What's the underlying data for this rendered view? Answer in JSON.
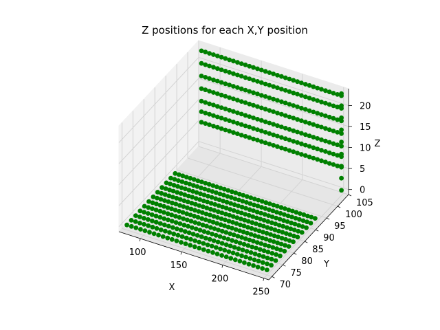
{
  "chart_data": {
    "type": "scatter3d",
    "title": "Z positions for each X,Y position",
    "xlabel": "X",
    "ylabel": "Y",
    "zlabel": "Z",
    "xticks": [
      "100",
      "150",
      "200",
      "250"
    ],
    "yticks": [
      "70",
      "75",
      "80",
      "85",
      "90",
      "95",
      "100",
      "105"
    ],
    "zticks": [
      "0",
      "5",
      "10",
      "15",
      "20"
    ],
    "xlim": [
      74,
      256
    ],
    "ylim": [
      68.6,
      105
    ],
    "zlim": [
      -1.2,
      24
    ],
    "grid": true,
    "marker_color": "#008000",
    "x_range": [
      80,
      250
    ],
    "z_start": 0,
    "z_end": 23,
    "lower_rows": [
      {
        "y": 70,
        "z": 0,
        "n": 32
      },
      {
        "y": 72,
        "z": 0,
        "n": 34
      },
      {
        "y": 74,
        "z": 0,
        "n": 35
      },
      {
        "y": 76,
        "z": 0,
        "n": 36
      },
      {
        "y": 78,
        "z": 0,
        "n": 37
      },
      {
        "y": 80,
        "z": 0,
        "n": 38
      },
      {
        "y": 82,
        "z": 0,
        "n": 38
      },
      {
        "y": 84,
        "z": 0,
        "n": 38
      },
      {
        "y": 86,
        "z": 0,
        "n": 38
      },
      {
        "y": 88,
        "z": 0,
        "n": 38
      },
      {
        "y": 90,
        "z": 0,
        "n": 38
      },
      {
        "y": 92,
        "z": 0,
        "n": 38
      }
    ],
    "upper_rows": [
      {
        "y": 104,
        "z": 5.5,
        "n": 36
      },
      {
        "y": 104,
        "z": 8.0,
        "n": 36
      },
      {
        "y": 104,
        "z": 10.5,
        "n": 36
      },
      {
        "y": 104,
        "z": 13.5,
        "n": 36
      },
      {
        "y": 104,
        "z": 16.5,
        "n": 36
      },
      {
        "y": 104,
        "z": 19.5,
        "n": 36
      },
      {
        "y": 104,
        "z": 22.5,
        "n": 36
      }
    ]
  }
}
